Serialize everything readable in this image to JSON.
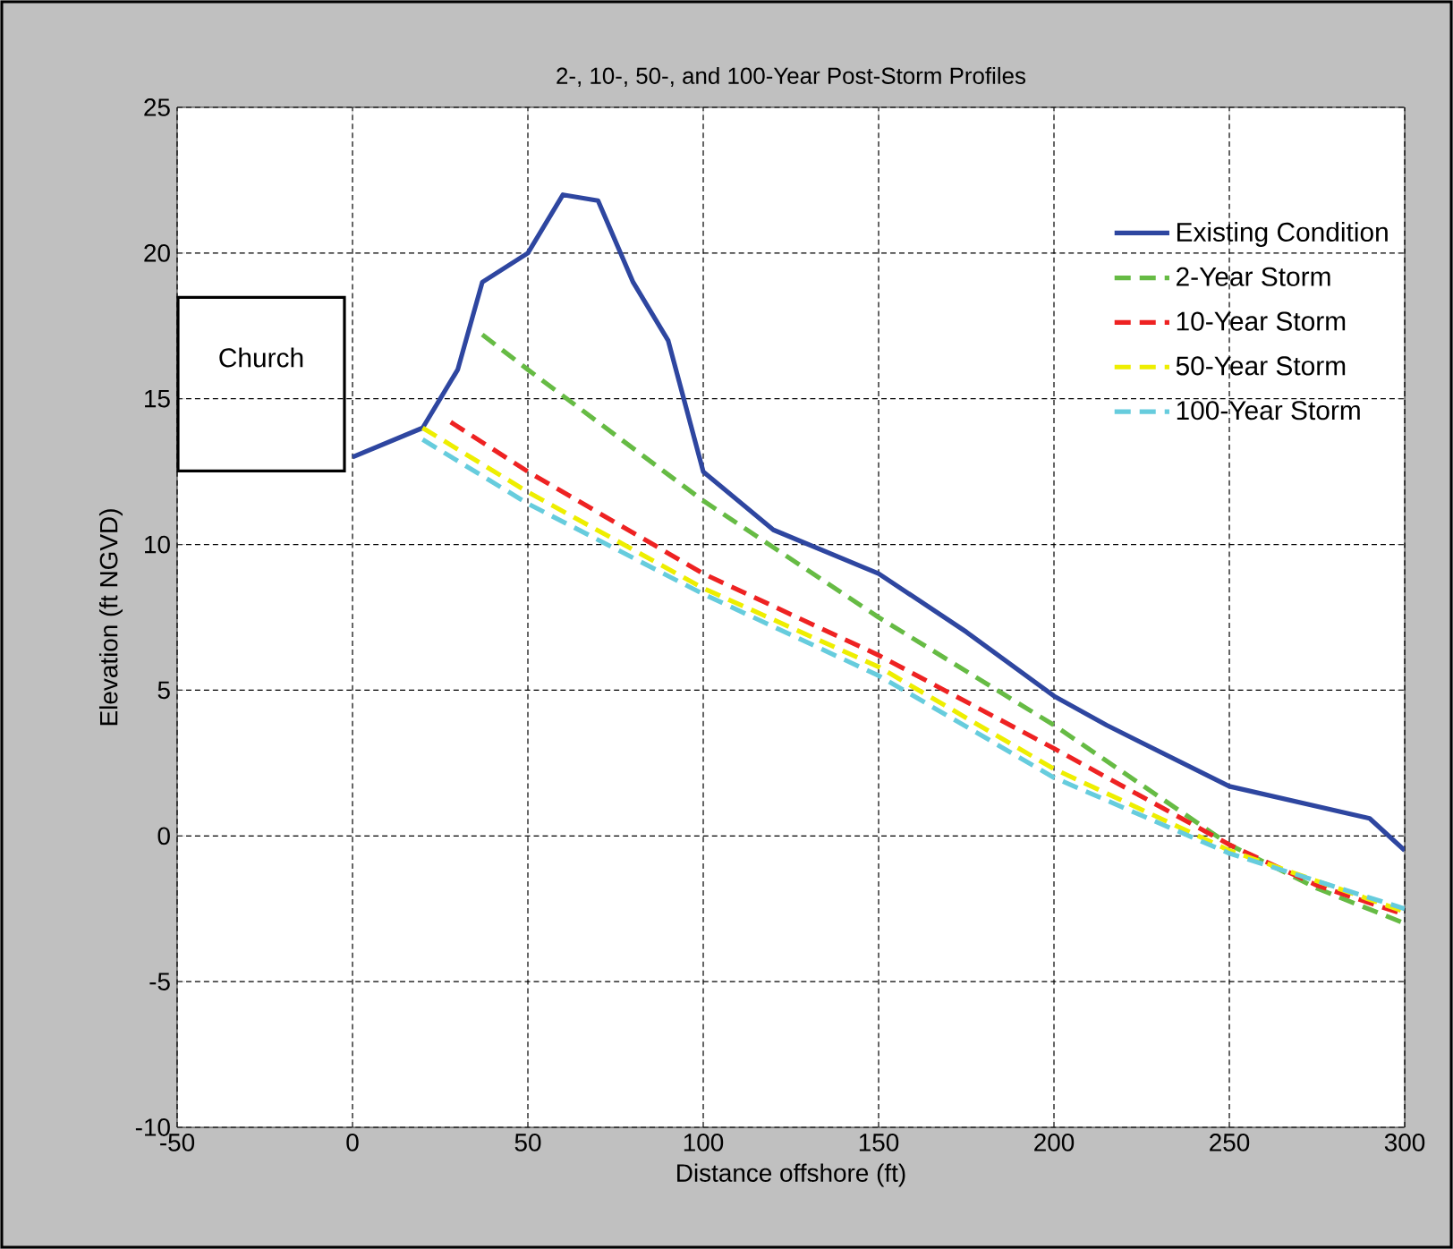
{
  "chart_data": {
    "type": "line",
    "title": "2-, 10-, 50-, and 100-Year Post-Storm Profiles",
    "xlabel": "Distance offshore (ft)",
    "ylabel": "Elevation (ft NGVD)",
    "xlim": [
      -50,
      300
    ],
    "xticks": [
      -50,
      0,
      50,
      100,
      150,
      200,
      250,
      300
    ],
    "ylim": [
      -10,
      25
    ],
    "yticks": [
      -10,
      -5,
      0,
      5,
      10,
      15,
      20,
      25
    ],
    "grid": true,
    "legend": "top right",
    "marker": "none",
    "annotations": [
      "Church"
    ],
    "series": [
      {
        "name": "Existing Condition",
        "color": "#2e46a0",
        "line_style": "solid",
        "x": [
          0,
          20,
          30,
          37,
          50,
          60,
          70,
          80,
          90,
          100,
          105,
          120,
          150,
          175,
          200,
          215,
          250,
          290,
          300
        ],
        "values": [
          13,
          14,
          16,
          19,
          20,
          22,
          21.8,
          19,
          17,
          12.5,
          12,
          10.5,
          9,
          7,
          4.8,
          3.8,
          1.7,
          0.6,
          -0.5
        ]
      },
      {
        "name": "2-Year Storm",
        "color": "#66bb44",
        "line_style": "dashed",
        "x": [
          37,
          50,
          100,
          150,
          200,
          250,
          275,
          300
        ],
        "values": [
          17.2,
          16,
          11.5,
          7.5,
          3.8,
          -0.3,
          -1.8,
          -3
        ]
      },
      {
        "name": "10-Year Storm",
        "color": "#ee2222",
        "line_style": "dashed",
        "x": [
          28,
          50,
          100,
          150,
          200,
          250,
          275,
          300
        ],
        "values": [
          14.2,
          12.5,
          9,
          6.2,
          3,
          -0.3,
          -1.7,
          -2.7
        ]
      },
      {
        "name": "50-Year Storm",
        "color": "#eeee00",
        "line_style": "dashed",
        "x": [
          20,
          50,
          100,
          150,
          200,
          250,
          300
        ],
        "values": [
          14,
          11.8,
          8.5,
          5.8,
          2.3,
          -0.5,
          -2.6
        ]
      },
      {
        "name": "100-Year Storm",
        "color": "#66ccdd",
        "line_style": "dashed",
        "x": [
          20,
          50,
          100,
          150,
          200,
          250,
          300
        ],
        "values": [
          13.6,
          11.4,
          8.3,
          5.5,
          2,
          -0.6,
          -2.5
        ]
      }
    ]
  }
}
